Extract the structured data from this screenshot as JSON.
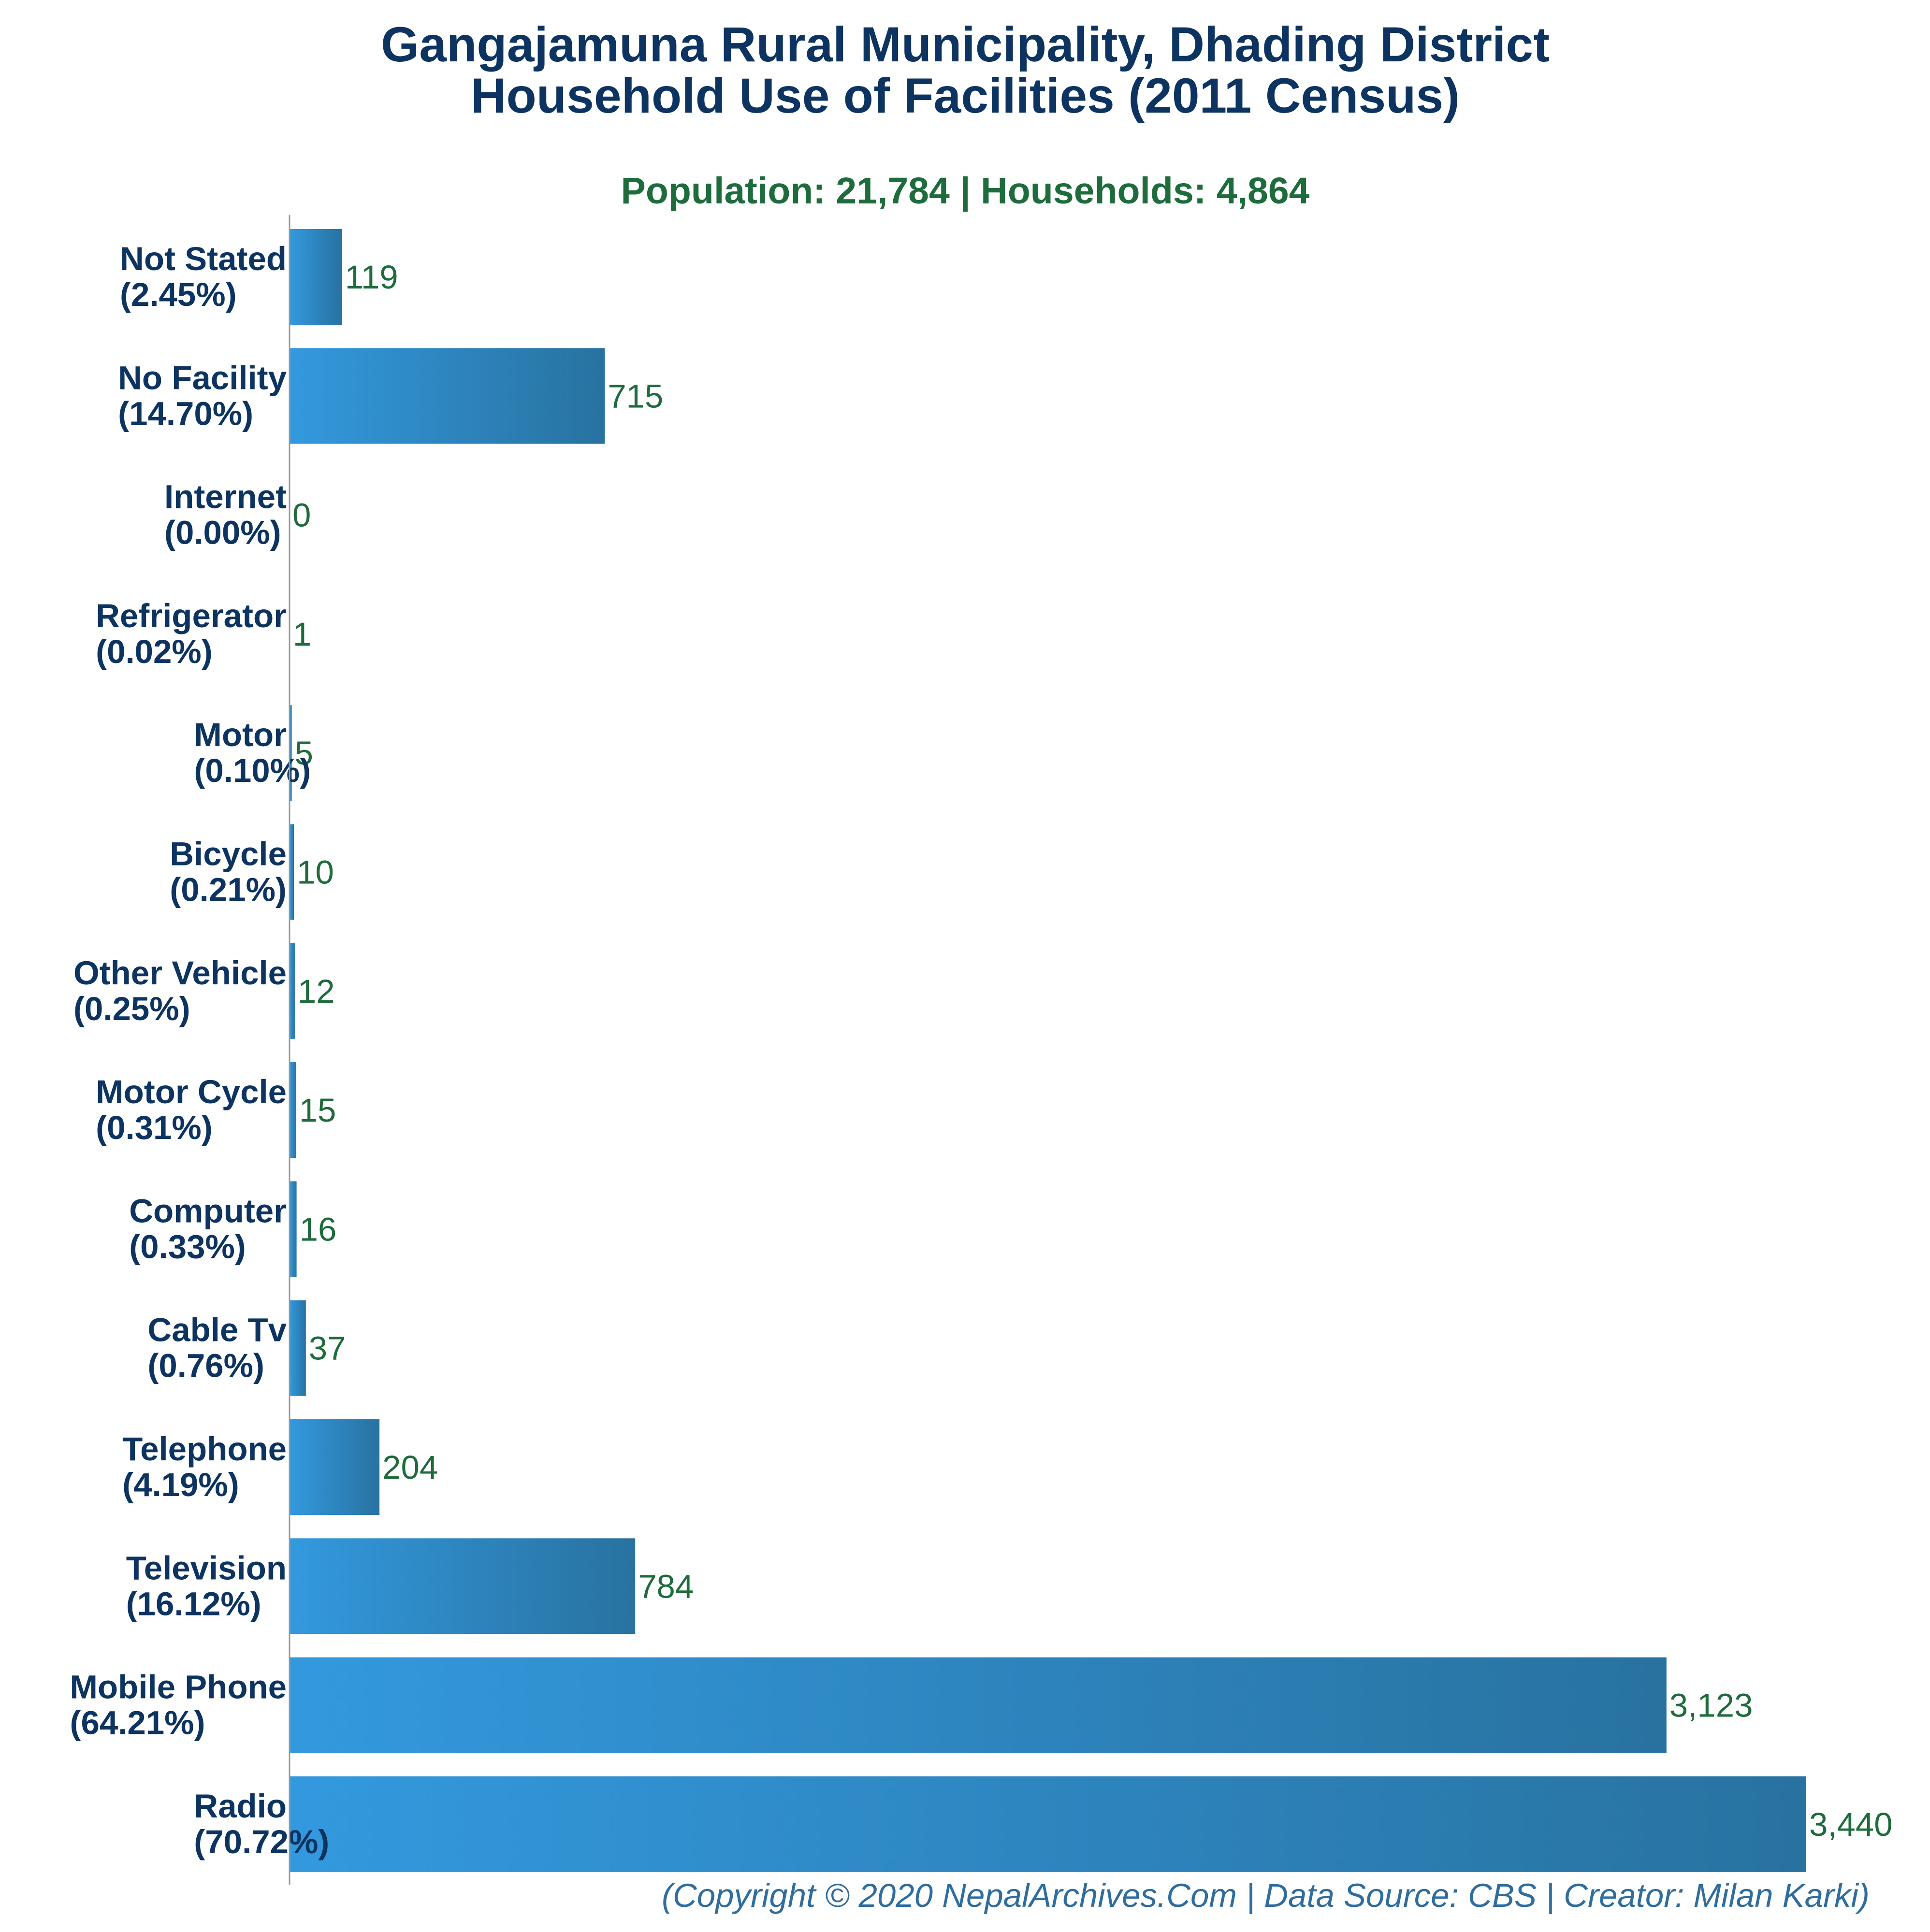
{
  "chart_data": {
    "type": "bar",
    "orientation": "horizontal",
    "title_lines": [
      "Gangajamuna Rural Municipality, Dhading District",
      "Household Use of Facilities (2011 Census)"
    ],
    "subtitle": "Population: 21,784 | Households: 4,864",
    "categories": [
      "Not Stated",
      "No Facility",
      "Internet",
      "Refrigerator",
      "Motor",
      "Bicycle",
      "Other Vehicle",
      "Motor Cycle",
      "Computer",
      "Cable Tv",
      "Telephone",
      "Television",
      "Mobile Phone",
      "Radio"
    ],
    "percent_labels": [
      "(2.45%)",
      "(14.70%)",
      "(0.00%)",
      "(0.02%)",
      "(0.10%)",
      "(0.21%)",
      "(0.25%)",
      "(0.31%)",
      "(0.33%)",
      "(0.76%)",
      "(4.19%)",
      "(16.12%)",
      "(64.21%)",
      "(70.72%)"
    ],
    "values": [
      119,
      715,
      0,
      1,
      5,
      10,
      12,
      15,
      16,
      37,
      204,
      784,
      3123,
      3440
    ],
    "value_labels": [
      "119",
      "715",
      "0",
      "1",
      "5",
      "10",
      "12",
      "15",
      "16",
      "37",
      "204",
      "784",
      "3,123",
      "3,440"
    ],
    "xlim": [
      0,
      3440
    ],
    "grid": false,
    "legend": false,
    "colors": {
      "bar_gradient_start": "#3399de",
      "bar_gradient_end": "#2872a0",
      "title": "#0d3461",
      "subtitle": "#1e6b3c",
      "value_label": "#1e6b3c",
      "footer": "#2f6d9e",
      "axis": "#999999"
    }
  },
  "footer": "(Copyright © 2020 NepalArchives.Com | Data Source: CBS | Creator: Milan Karki)"
}
